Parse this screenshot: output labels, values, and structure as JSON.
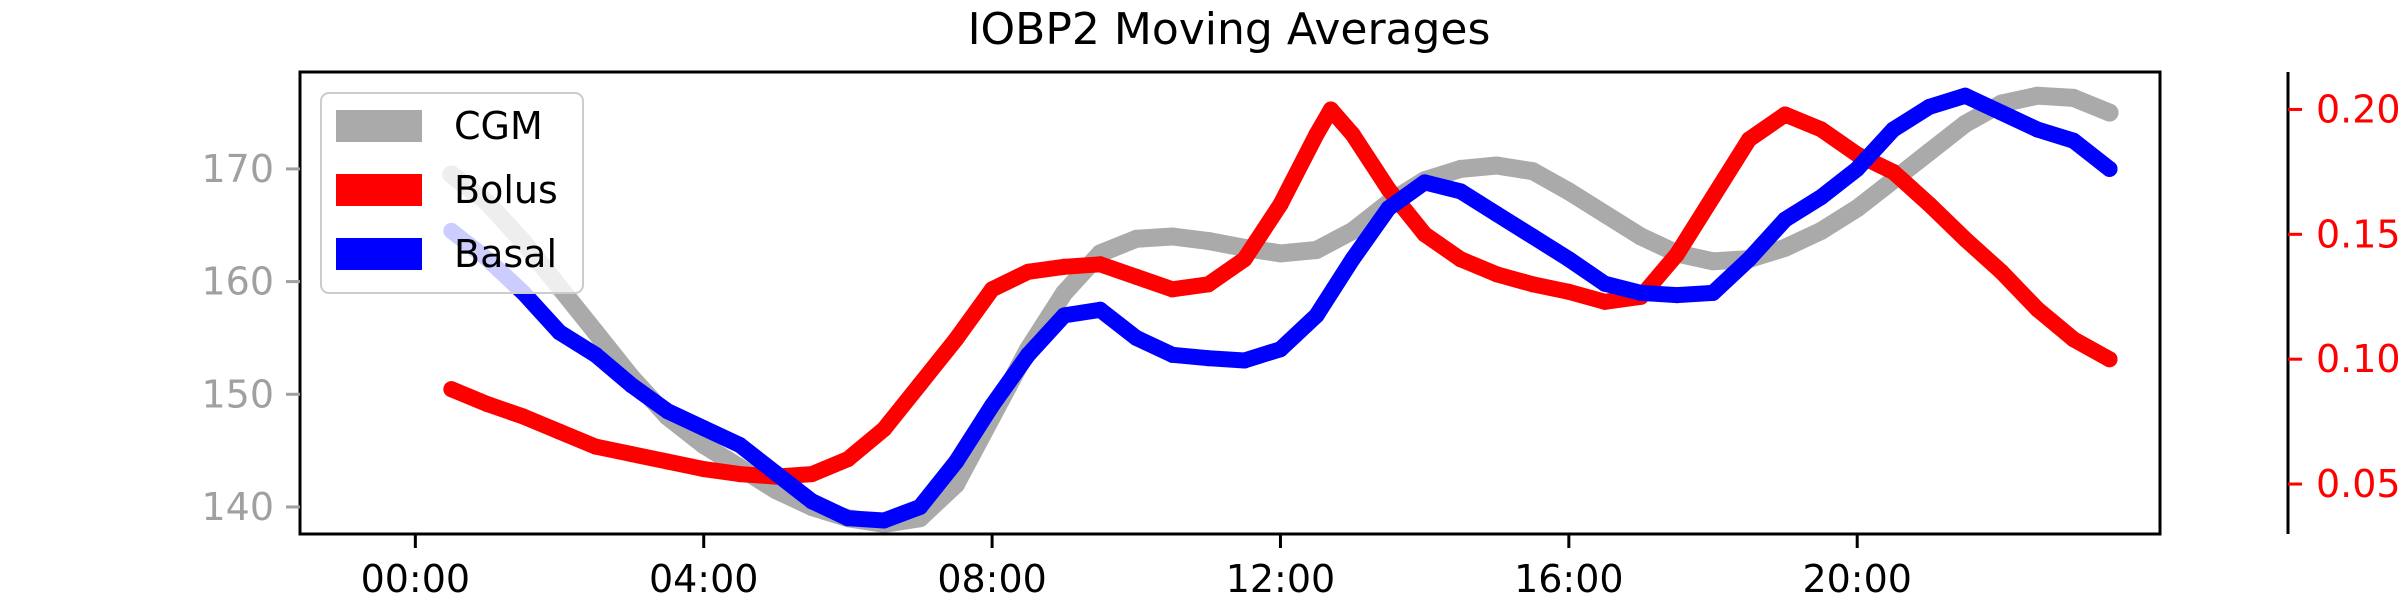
{
  "colors": {
    "cgm": "#aaaaaa",
    "bolus": "#ff0000",
    "basal": "#0000ff",
    "left_axis_text": "#a0a0a0",
    "right_axis_text": "#ff0000",
    "frame": "#000000"
  },
  "chart_data": {
    "type": "line",
    "title": "IOBP2 Moving Averages",
    "xlabel": "",
    "ylabel": "",
    "legend_position": "top-left",
    "grid": false,
    "x_axis": {
      "unit": "hours",
      "range": [
        -1.6,
        24.2
      ],
      "ticks": [
        0,
        4,
        8,
        12,
        16,
        20
      ],
      "tick_labels": [
        "00:00",
        "04:00",
        "08:00",
        "12:00",
        "16:00",
        "20:00"
      ]
    },
    "y_left": {
      "range": [
        137.6,
        178.6
      ],
      "ticks": [
        140,
        150,
        160,
        170
      ],
      "tick_labels": [
        "140",
        "150",
        "160",
        "170"
      ]
    },
    "y_right": {
      "range": [
        0.03,
        0.215
      ],
      "ticks": [
        0.05,
        0.1,
        0.15,
        0.2
      ],
      "tick_labels": [
        "0.05",
        "0.10",
        "0.15",
        "0.20"
      ]
    },
    "legend": [
      {
        "name": "CGM",
        "color": "#aaaaaa"
      },
      {
        "name": "Bolus",
        "color": "#ff0000"
      },
      {
        "name": "Basal",
        "color": "#0000ff"
      }
    ],
    "series": [
      {
        "name": "CGM",
        "axis": "left",
        "color": "#aaaaaa",
        "x": [
          0.5,
          1,
          1.5,
          2,
          2.5,
          3,
          3.5,
          4,
          4.5,
          5,
          5.5,
          6,
          6.5,
          7,
          7.5,
          8,
          8.5,
          9,
          9.5,
          10,
          10.5,
          11,
          11.5,
          12,
          12.5,
          13,
          13.5,
          14,
          14.5,
          15,
          15.5,
          16,
          16.5,
          17,
          17.5,
          18,
          18.5,
          19,
          19.5,
          20,
          20.5,
          21,
          21.5,
          22,
          22.5,
          23,
          23.5
        ],
        "y": [
          169.5,
          167,
          163.5,
          159.5,
          155.5,
          151.5,
          148,
          145.5,
          143.5,
          141.5,
          140,
          139,
          138.5,
          139,
          142,
          148,
          154,
          159,
          162.5,
          163.8,
          164,
          163.6,
          163,
          162.5,
          162.8,
          164.5,
          167,
          169,
          170,
          170.3,
          169.8,
          168,
          166,
          164,
          162.5,
          161.8,
          162,
          163,
          164.5,
          166.5,
          169,
          171.5,
          174,
          175.8,
          176.5,
          176.3,
          175
        ]
      },
      {
        "name": "Bolus",
        "axis": "right",
        "color": "#ff0000",
        "x": [
          0.5,
          1,
          1.5,
          2,
          2.5,
          3,
          3.5,
          4,
          4.5,
          5,
          5.5,
          6,
          6.5,
          7,
          7.5,
          8,
          8.5,
          9,
          9.5,
          10,
          10.5,
          11,
          11.5,
          12,
          12.5,
          12.7,
          13,
          13.5,
          14,
          14.5,
          15,
          15.5,
          16,
          16.5,
          17,
          17.5,
          18,
          18.5,
          19,
          19.5,
          20,
          20.5,
          21,
          21.5,
          22,
          22.5,
          23,
          23.5
        ],
        "y": [
          0.088,
          0.082,
          0.077,
          0.071,
          0.065,
          0.062,
          0.059,
          0.056,
          0.054,
          0.053,
          0.054,
          0.06,
          0.072,
          0.09,
          0.108,
          0.128,
          0.135,
          0.137,
          0.138,
          0.133,
          0.128,
          0.13,
          0.14,
          0.162,
          0.19,
          0.2,
          0.19,
          0.168,
          0.15,
          0.14,
          0.134,
          0.13,
          0.127,
          0.123,
          0.125,
          0.142,
          0.165,
          0.188,
          0.198,
          0.192,
          0.182,
          0.175,
          0.162,
          0.148,
          0.135,
          0.12,
          0.108,
          0.1
        ]
      },
      {
        "name": "Basal",
        "axis": "left",
        "color": "#0000ff",
        "x": [
          0.5,
          1,
          1.5,
          2,
          2.5,
          3,
          3.5,
          4,
          4.5,
          5,
          5.5,
          6,
          6.5,
          7,
          7.5,
          8,
          8.5,
          9,
          9.5,
          10,
          10.5,
          11,
          11.5,
          12,
          12.5,
          13,
          13.5,
          14,
          14.5,
          15,
          15.5,
          16,
          16.5,
          17,
          17.5,
          18,
          18.5,
          19,
          19.5,
          20,
          20.5,
          21,
          21.5,
          22,
          22.5,
          23,
          23.5
        ],
        "y": [
          164.5,
          162,
          159,
          155.5,
          153.5,
          150.8,
          148.5,
          147,
          145.5,
          143,
          140.5,
          139,
          138.8,
          140,
          144,
          149,
          153.5,
          157,
          157.5,
          155,
          153.5,
          153.2,
          153,
          154,
          157,
          162,
          166.5,
          168.8,
          168,
          166,
          164,
          162,
          159.8,
          159,
          158.8,
          159,
          162,
          165.5,
          167.5,
          170,
          173.5,
          175.5,
          176.5,
          175,
          173.5,
          172.5,
          170
        ]
      }
    ]
  }
}
